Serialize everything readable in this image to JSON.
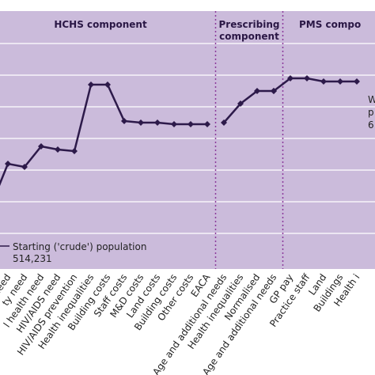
{
  "chart_data": {
    "type": "line",
    "sections": [
      "HCHS component",
      [
        "Prescribing",
        "component"
      ],
      "PMS compo"
    ],
    "categories": [
      null,
      "need",
      "ty need",
      "l health need",
      "HIV/AIDS need",
      "HIV/AIDS prevention",
      "Health inequalities",
      "Building costs",
      "Staff costs",
      "M&D costs",
      "Land costs",
      "Building costs",
      "Other costs",
      "EACA",
      "Age and additional needs",
      "Health inequalities",
      "Normalised",
      "Age and additional needs",
      "GP pay",
      "Practice staff",
      "Land",
      "Buildings",
      "Health i"
    ],
    "series": [
      {
        "name": "HCHS",
        "color": "#2d1a4a",
        "values": [
          1.9,
          3.2,
          3.1,
          3.75,
          3.65,
          3.6,
          5.7,
          5.7,
          4.55,
          4.5,
          4.5,
          4.45,
          4.45,
          4.45,
          null,
          null,
          null,
          null,
          null,
          null,
          null,
          null,
          null
        ]
      },
      {
        "name": "Prescribing",
        "color": "#2d1a4a",
        "values": [
          null,
          null,
          null,
          null,
          null,
          null,
          null,
          null,
          null,
          null,
          null,
          null,
          null,
          null,
          4.5,
          5.1,
          5.5,
          5.5,
          null,
          null,
          null,
          null,
          null
        ]
      },
      {
        "name": "PMS",
        "color": "#2d1a4a",
        "values": [
          null,
          null,
          null,
          null,
          null,
          null,
          null,
          null,
          null,
          null,
          null,
          null,
          null,
          null,
          null,
          null,
          null,
          5.5,
          5.9,
          5.9,
          5.8,
          5.8,
          5.8
        ]
      }
    ],
    "annotations": [
      [
        "Starting ('crude') population",
        "514,231"
      ],
      [
        "W",
        "p",
        "6"
      ]
    ],
    "ylim": [
      0,
      8
    ],
    "yticks": [
      1,
      2,
      3,
      4,
      5,
      6,
      7
    ],
    "grid": true,
    "background": "#cbbbdb"
  }
}
